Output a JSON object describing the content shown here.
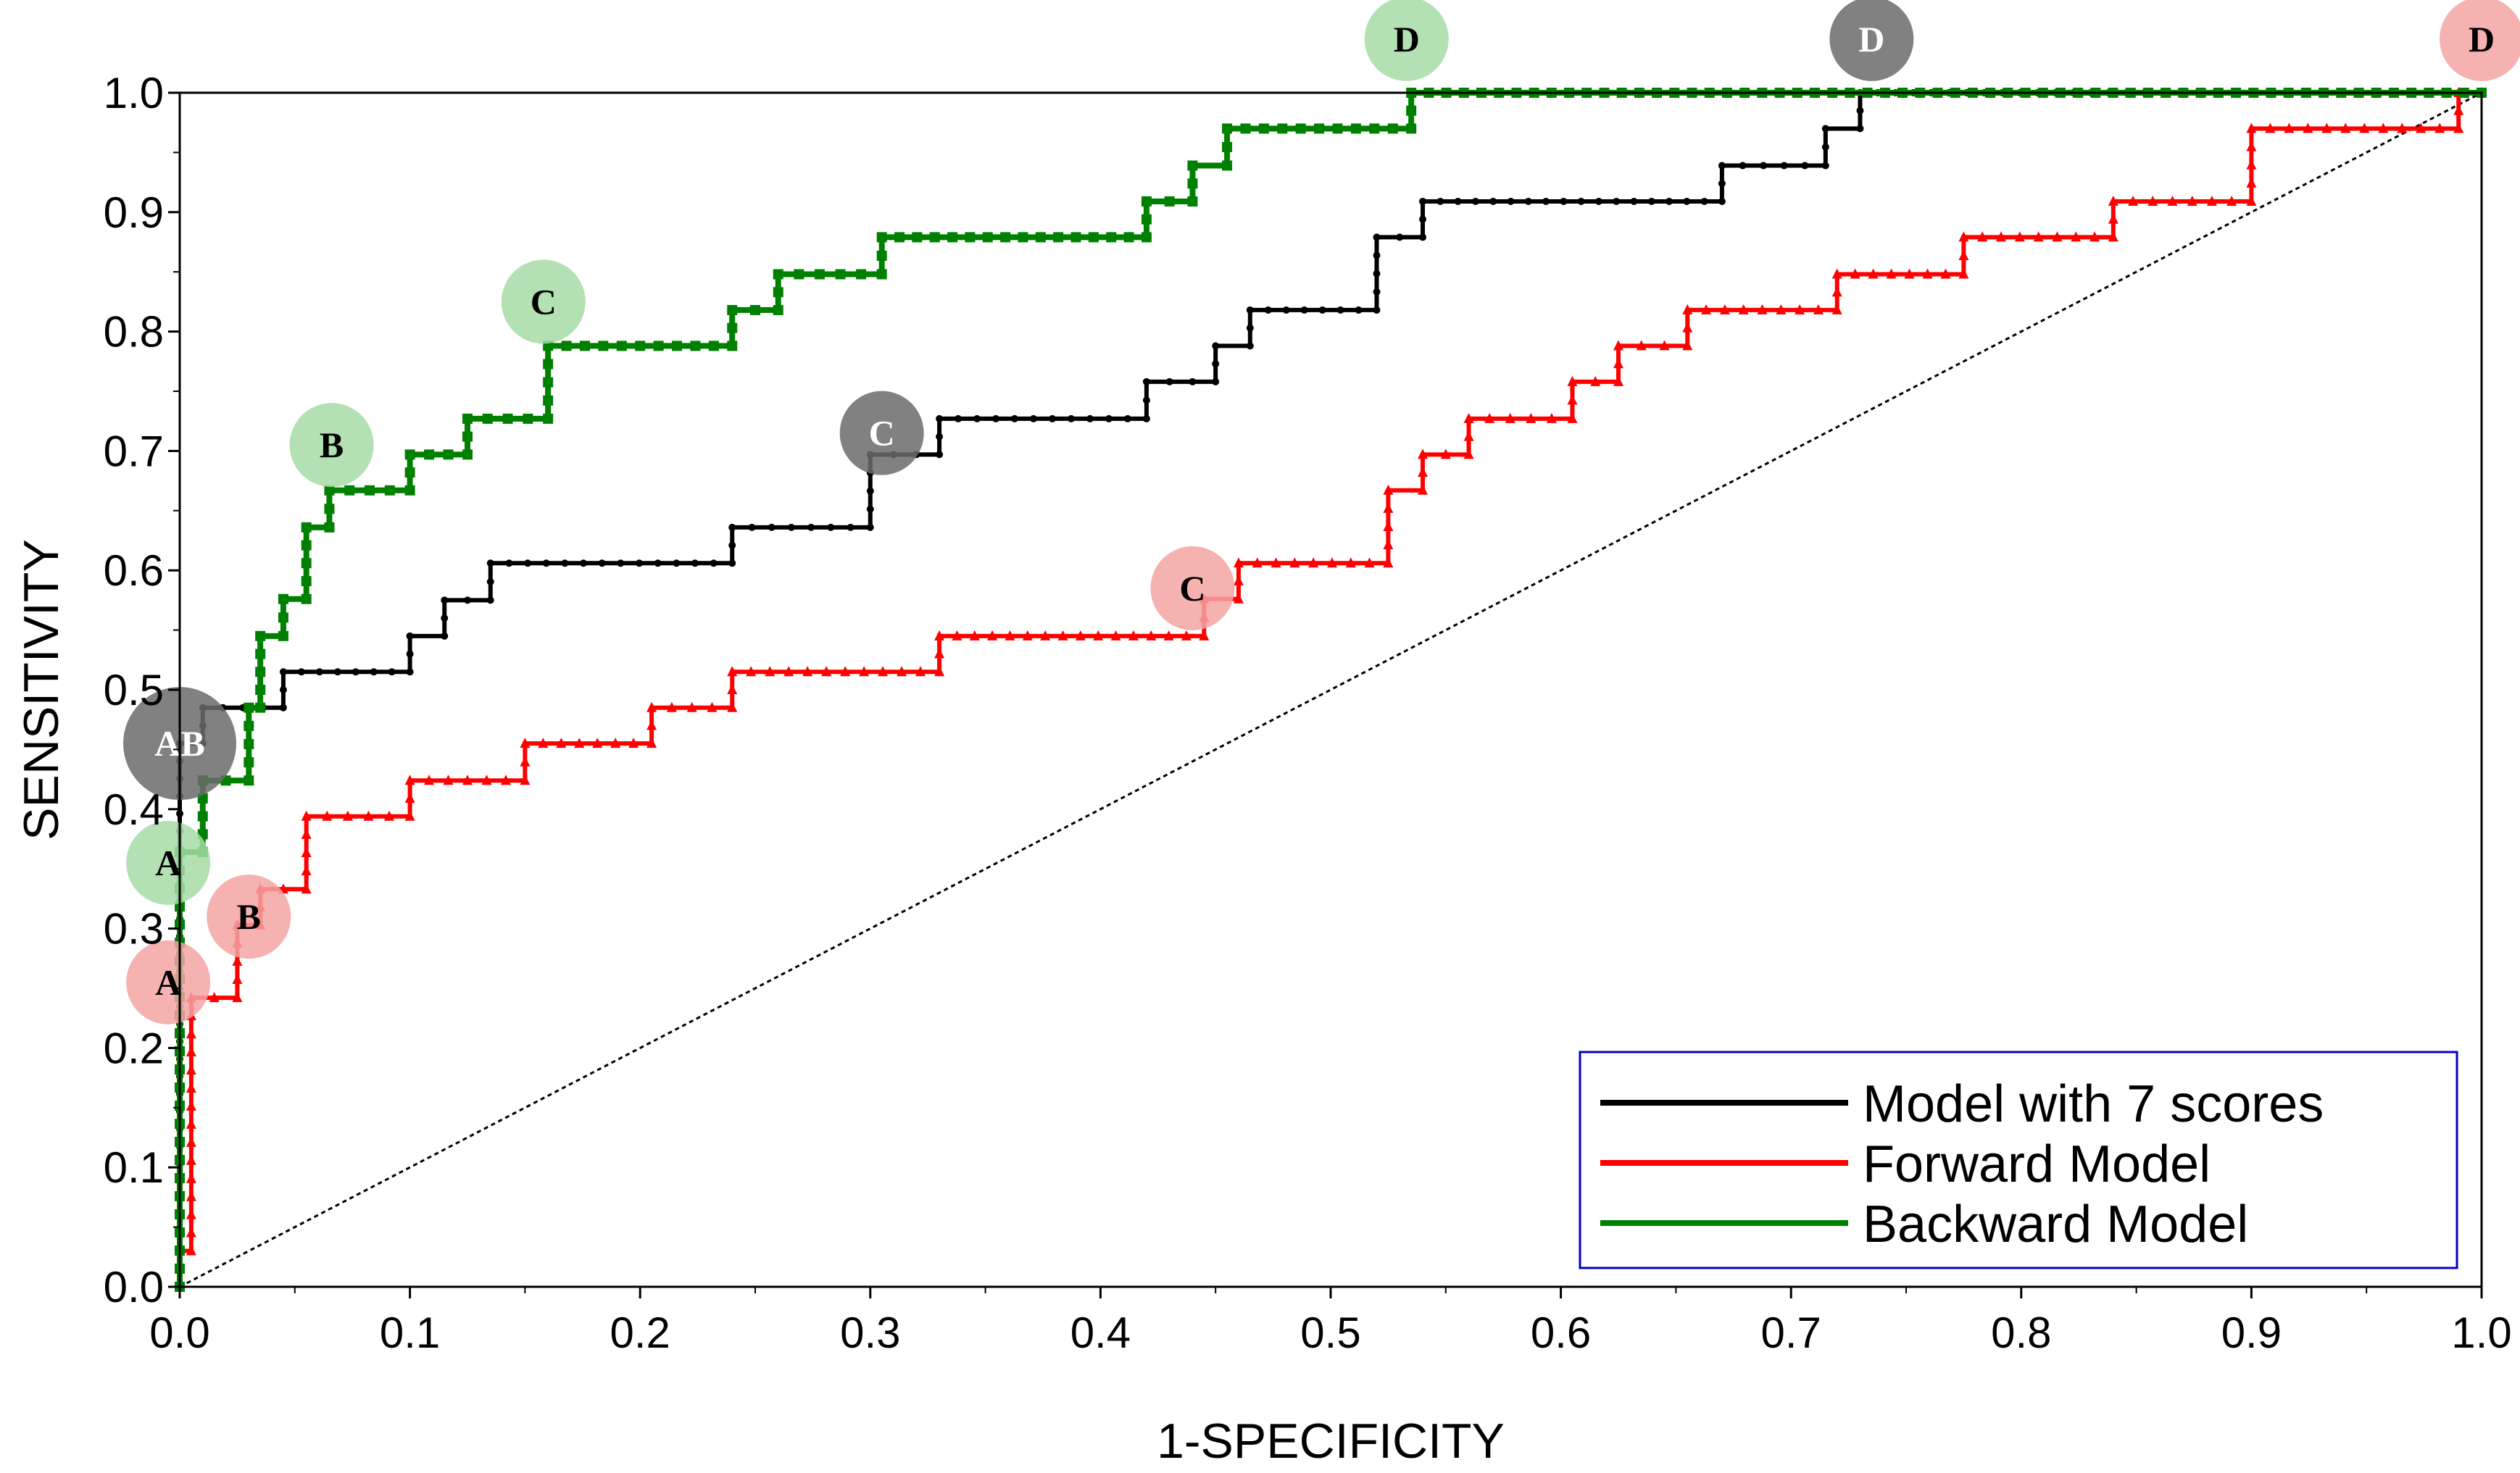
{
  "chart_data": {
    "type": "line",
    "title": "",
    "xlabel": "1-SPECIFICITY",
    "ylabel": "SENSITIVITY",
    "xlim": [
      0,
      1
    ],
    "ylim": [
      0,
      1
    ],
    "x_ticks": [
      "0.0",
      "0.1",
      "0.2",
      "0.3",
      "0.4",
      "0.5",
      "0.6",
      "0.7",
      "0.8",
      "0.9",
      "1.0"
    ],
    "y_ticks": [
      "0.0",
      "0.1",
      "0.2",
      "0.3",
      "0.4",
      "0.5",
      "0.6",
      "0.7",
      "0.8",
      "0.9",
      "1.0"
    ],
    "legend_position": "bottom-right",
    "reference_line": {
      "name": "chance",
      "x": [
        0,
        1
      ],
      "y": [
        0,
        1
      ]
    },
    "series": [
      {
        "name": "Model with 7 scores",
        "color": "#000000",
        "marker": "circle",
        "x": [
          0,
          0,
          0.01,
          0.01,
          0.045,
          0.045,
          0.1,
          0.1,
          0.115,
          0.115,
          0.135,
          0.135,
          0.24,
          0.24,
          0.3,
          0.3,
          0.33,
          0.33,
          0.42,
          0.42,
          0.45,
          0.45,
          0.465,
          0.465,
          0.52,
          0.52,
          0.54,
          0.54,
          0.67,
          0.67,
          0.715,
          0.715,
          0.73,
          0.73,
          1.0
        ],
        "y": [
          0,
          0.455,
          0.455,
          0.485,
          0.485,
          0.515,
          0.515,
          0.545,
          0.545,
          0.575,
          0.575,
          0.606,
          0.606,
          0.636,
          0.636,
          0.697,
          0.697,
          0.727,
          0.727,
          0.758,
          0.758,
          0.788,
          0.788,
          0.818,
          0.818,
          0.879,
          0.879,
          0.909,
          0.909,
          0.939,
          0.939,
          0.97,
          0.97,
          1.0,
          1.0
        ]
      },
      {
        "name": "Forward Model",
        "color": "#ff0000",
        "marker": "triangle",
        "x": [
          0,
          0,
          0.005,
          0.005,
          0.025,
          0.025,
          0.035,
          0.035,
          0.055,
          0.055,
          0.1,
          0.1,
          0.15,
          0.15,
          0.205,
          0.205,
          0.24,
          0.24,
          0.33,
          0.33,
          0.445,
          0.445,
          0.46,
          0.46,
          0.525,
          0.525,
          0.54,
          0.54,
          0.56,
          0.56,
          0.605,
          0.605,
          0.625,
          0.625,
          0.655,
          0.655,
          0.72,
          0.72,
          0.775,
          0.775,
          0.84,
          0.84,
          0.9,
          0.9,
          0.99,
          0.99,
          1.0
        ],
        "y": [
          0,
          0.03,
          0.03,
          0.242,
          0.242,
          0.303,
          0.303,
          0.333,
          0.333,
          0.394,
          0.394,
          0.424,
          0.424,
          0.455,
          0.455,
          0.485,
          0.485,
          0.515,
          0.515,
          0.545,
          0.545,
          0.576,
          0.576,
          0.606,
          0.606,
          0.667,
          0.667,
          0.697,
          0.697,
          0.727,
          0.727,
          0.758,
          0.758,
          0.788,
          0.788,
          0.818,
          0.818,
          0.848,
          0.848,
          0.879,
          0.879,
          0.909,
          0.909,
          0.97,
          0.97,
          1.0,
          1.0
        ]
      },
      {
        "name": "Backward Model",
        "color": "#008000",
        "marker": "square",
        "x": [
          0,
          0,
          0.01,
          0.01,
          0.03,
          0.03,
          0.035,
          0.035,
          0.045,
          0.045,
          0.055,
          0.055,
          0.065,
          0.065,
          0.1,
          0.1,
          0.125,
          0.125,
          0.16,
          0.16,
          0.24,
          0.24,
          0.26,
          0.26,
          0.305,
          0.305,
          0.42,
          0.42,
          0.44,
          0.44,
          0.455,
          0.455,
          0.535,
          0.535,
          1.0
        ],
        "y": [
          0,
          0.364,
          0.364,
          0.424,
          0.424,
          0.485,
          0.485,
          0.545,
          0.545,
          0.576,
          0.576,
          0.636,
          0.636,
          0.667,
          0.667,
          0.697,
          0.697,
          0.727,
          0.727,
          0.788,
          0.788,
          0.818,
          0.818,
          0.848,
          0.848,
          0.879,
          0.879,
          0.909,
          0.909,
          0.939,
          0.939,
          0.97,
          0.97,
          1.0,
          1.0
        ]
      }
    ],
    "annotations": [
      {
        "label": "AB",
        "series": "Model with 7 scores",
        "x": 0.0,
        "y": 0.455
      },
      {
        "label": "C",
        "series": "Model with 7 scores",
        "x": 0.305,
        "y": 0.715
      },
      {
        "label": "D",
        "series": "Model with 7 scores",
        "x": 0.735,
        "y": 1.045
      },
      {
        "label": "A",
        "series": "Forward Model",
        "x": -0.005,
        "y": 0.255
      },
      {
        "label": "B",
        "series": "Forward Model",
        "x": 0.03,
        "y": 0.31
      },
      {
        "label": "C",
        "series": "Forward Model",
        "x": 0.44,
        "y": 0.585
      },
      {
        "label": "D",
        "series": "Forward Model",
        "x": 1.0,
        "y": 1.045
      },
      {
        "label": "A",
        "series": "Backward Model",
        "x": -0.005,
        "y": 0.355
      },
      {
        "label": "B",
        "series": "Backward Model",
        "x": 0.066,
        "y": 0.705
      },
      {
        "label": "C",
        "series": "Backward Model",
        "x": 0.158,
        "y": 0.825
      },
      {
        "label": "D",
        "series": "Backward Model",
        "x": 0.533,
        "y": 1.045
      }
    ]
  }
}
